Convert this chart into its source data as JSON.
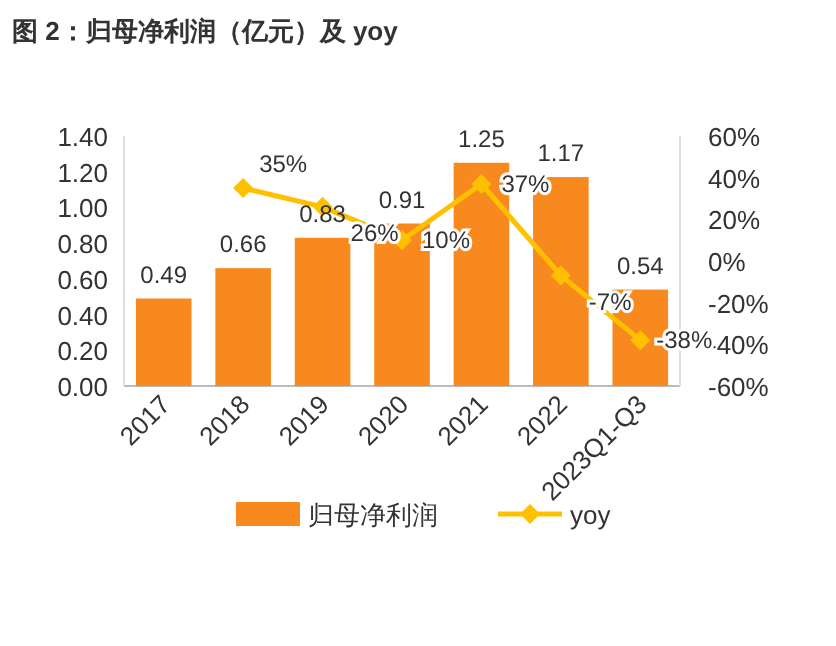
{
  "chart_data": {
    "type": "bar",
    "title": "图 2：归母净利润（亿元）及 yoy",
    "categories": [
      "2017",
      "2018",
      "2019",
      "2020",
      "2021",
      "2022",
      "2023Q1-Q3"
    ],
    "series": [
      {
        "name": "归母净利润",
        "color": "#f7891f",
        "values": [
          0.49,
          0.66,
          0.83,
          0.91,
          1.25,
          1.17,
          0.54
        ],
        "value_labels": [
          "0.49",
          "0.66",
          "0.83",
          "0.91",
          "1.25",
          "1.17",
          "0.54"
        ]
      },
      {
        "name": "yoy",
        "type": "line",
        "axis": "y2",
        "color": "#ffc000",
        "marker": "diamond",
        "values": [
          null,
          35,
          26,
          10,
          37,
          -7,
          -38
        ],
        "value_labels": [
          null,
          "35%",
          "26%",
          "10%",
          "37%",
          "-7%",
          "-38%"
        ]
      }
    ],
    "ylim": [
      0,
      1.4
    ],
    "yticks": [
      "0.00",
      "0.20",
      "0.40",
      "0.60",
      "0.80",
      "1.00",
      "1.20",
      "1.40"
    ],
    "y2lim": [
      -60,
      60
    ],
    "y2ticks": [
      {
        "value": -60,
        "label": "-60%"
      },
      {
        "value": -40,
        "label": "-40%"
      },
      {
        "value": -20,
        "label": "-20%"
      },
      {
        "value": 0,
        "label": "0%"
      },
      {
        "value": 20,
        "label": "20%"
      },
      {
        "value": 40,
        "label": "40%"
      },
      {
        "value": 60,
        "label": "60%"
      }
    ],
    "grid": false,
    "legend": "bottom"
  }
}
